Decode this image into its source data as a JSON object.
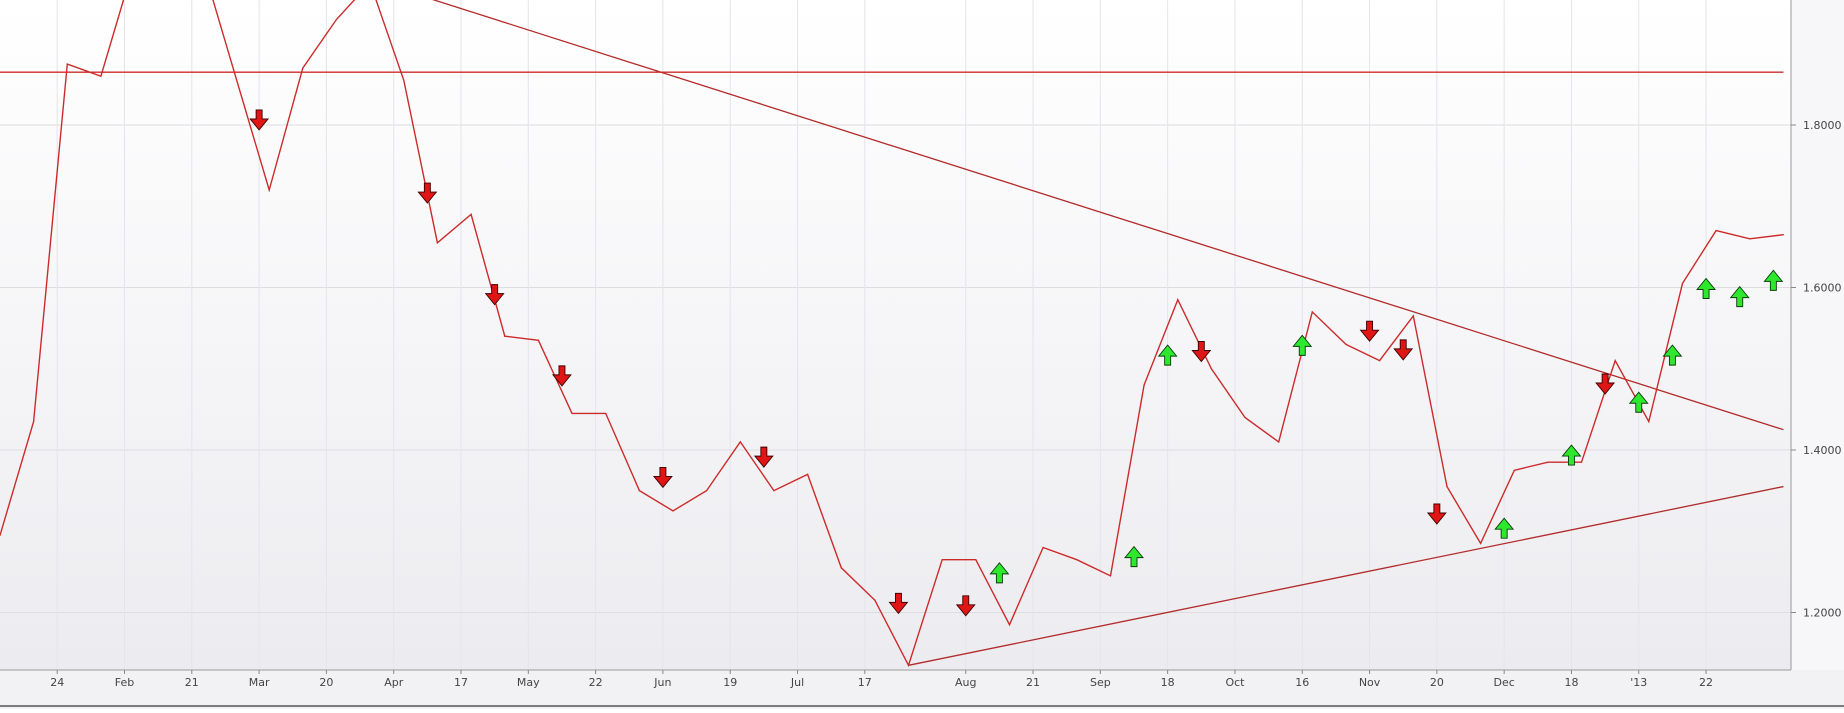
{
  "chart_data": {
    "type": "line",
    "title": "",
    "xlabel": "",
    "ylabel": "",
    "x_tick_labels": [
      "24",
      "Feb",
      "21",
      "Mar",
      "20",
      "Apr",
      "17",
      "May",
      "22",
      "Jun",
      "19",
      "Jul",
      "17",
      "Aug",
      "21",
      "Sep",
      "18",
      "Oct",
      "16",
      "Nov",
      "20",
      "Dec",
      "18",
      "'13",
      "22"
    ],
    "y_tick_labels": [
      "1.2000",
      "1.4000",
      "1.6000",
      "1.8000"
    ],
    "y_ticks": [
      1.2,
      1.4,
      1.6,
      1.8
    ],
    "ylim": [
      1.13,
      1.98
    ],
    "grid": true,
    "series": [
      {
        "values": [
          1.295,
          1.435,
          1.875,
          1.86,
          2.0,
          2.11,
          2.0,
          1.86,
          1.72,
          1.87,
          1.93,
          1.975,
          1.855,
          1.655,
          1.69,
          1.54,
          1.535,
          1.445,
          1.445,
          1.35,
          1.325,
          1.35,
          1.41,
          1.35,
          1.37,
          1.255,
          1.215,
          1.135,
          1.265,
          1.265,
          1.185,
          1.28,
          1.265,
          1.245,
          1.48,
          1.585,
          1.5,
          1.44,
          1.41,
          1.57,
          1.53,
          1.51,
          1.565,
          1.355,
          1.285,
          1.375,
          1.385,
          1.385,
          1.51,
          1.435,
          1.605,
          1.67,
          1.66,
          1.665
        ],
        "color": "#cc2b2b"
      }
    ],
    "trendlines": [
      {
        "name": "resistance",
        "from": [
          11.3,
          1.975
        ],
        "to": [
          53.0,
          1.425
        ],
        "color": "#b22a2a"
      },
      {
        "name": "support",
        "from": [
          27,
          1.135
        ],
        "to": [
          53.0,
          1.355
        ],
        "color": "#b22a2a"
      },
      {
        "name": "horizontal",
        "from": [
          0,
          1.865
        ],
        "to": [
          53.0,
          1.865
        ],
        "color": "#cc2b2b"
      }
    ],
    "signals": [
      {
        "x": 7.7,
        "y": 1.805,
        "dir": "down"
      },
      {
        "x": 12.7,
        "y": 1.715,
        "dir": "down"
      },
      {
        "x": 14.7,
        "y": 1.59,
        "dir": "down"
      },
      {
        "x": 16.7,
        "y": 1.49,
        "dir": "down"
      },
      {
        "x": 19.7,
        "y": 1.365,
        "dir": "down"
      },
      {
        "x": 22.7,
        "y": 1.39,
        "dir": "down"
      },
      {
        "x": 26.7,
        "y": 1.21,
        "dir": "down"
      },
      {
        "x": 28.7,
        "y": 1.207,
        "dir": "down"
      },
      {
        "x": 29.7,
        "y": 1.25,
        "dir": "up"
      },
      {
        "x": 33.7,
        "y": 1.27,
        "dir": "up"
      },
      {
        "x": 34.7,
        "y": 1.518,
        "dir": "up"
      },
      {
        "x": 35.7,
        "y": 1.52,
        "dir": "down"
      },
      {
        "x": 38.7,
        "y": 1.53,
        "dir": "up"
      },
      {
        "x": 40.7,
        "y": 1.545,
        "dir": "down"
      },
      {
        "x": 41.7,
        "y": 1.522,
        "dir": "down"
      },
      {
        "x": 42.7,
        "y": 1.32,
        "dir": "down"
      },
      {
        "x": 44.7,
        "y": 1.305,
        "dir": "up"
      },
      {
        "x": 46.7,
        "y": 1.395,
        "dir": "up"
      },
      {
        "x": 47.7,
        "y": 1.48,
        "dir": "down"
      },
      {
        "x": 48.7,
        "y": 1.46,
        "dir": "up"
      },
      {
        "x": 49.7,
        "y": 1.518,
        "dir": "up"
      },
      {
        "x": 50.7,
        "y": 1.6,
        "dir": "up"
      },
      {
        "x": 51.7,
        "y": 1.59,
        "dir": "up"
      },
      {
        "x": 52.7,
        "y": 1.61,
        "dir": "up"
      }
    ]
  }
}
